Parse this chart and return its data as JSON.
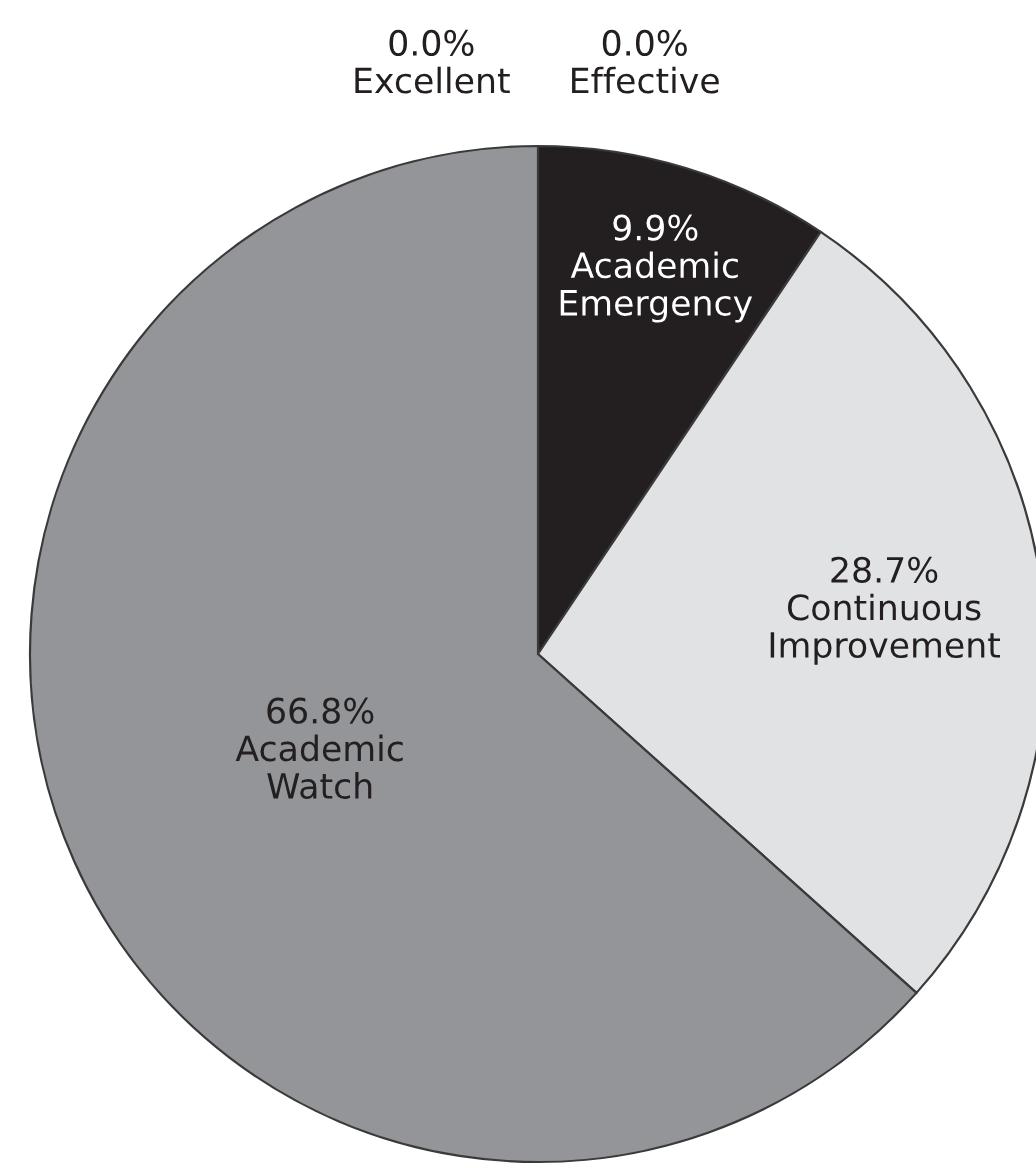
{
  "chart_data": {
    "type": "pie",
    "categories": [
      "Excellent",
      "Effective",
      "Academic Emergency",
      "Continuous Improvement",
      "Academic Watch"
    ],
    "values": [
      0,
      0,
      9.9,
      28.7,
      66.8
    ],
    "value_labels": [
      "0.0%",
      "0.0%",
      "9.9%",
      "28.7%",
      "66.8%"
    ],
    "colors": [
      null,
      null,
      "#231f20",
      "#e1e2e4",
      "#939598"
    ]
  }
}
